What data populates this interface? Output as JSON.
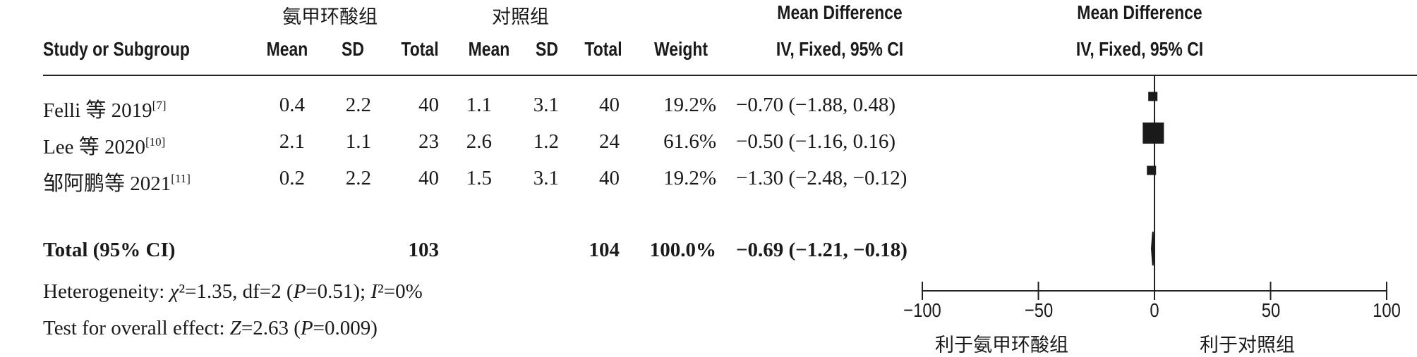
{
  "header": {
    "group_treatment": "氨甲环酸组",
    "group_control": "对照组",
    "md_title_left": "Mean Difference",
    "md_title_right": "Mean Difference",
    "study": "Study or Subgroup",
    "mean1": "Mean",
    "sd1": "SD",
    "total1": "Total",
    "mean2": "Mean",
    "sd2": "SD",
    "total2": "Total",
    "weight": "Weight",
    "ci_left": "IV, Fixed, 95% CI",
    "ci_right": "IV, Fixed, 95% CI"
  },
  "rows": [
    {
      "name": "Felli 等 2019",
      "ref": "[7]",
      "mean1": "0.4",
      "sd1": "2.2",
      "total1": "40",
      "mean2": "1.1",
      "sd2": "3.1",
      "total2": "40",
      "weight": "19.2%",
      "ci": "−0.70 (−1.88, 0.48)"
    },
    {
      "name": "Lee 等 2020",
      "ref": "[10]",
      "mean1": "2.1",
      "sd1": "1.1",
      "total1": "23",
      "mean2": "2.6",
      "sd2": "1.2",
      "total2": "24",
      "weight": "61.6%",
      "ci": "−0.50 (−1.16, 0.16)"
    },
    {
      "name": "邹阿鹏等 2021",
      "ref": "[11]",
      "mean1": "0.2",
      "sd1": "2.2",
      "total1": "40",
      "mean2": "1.5",
      "sd2": "3.1",
      "total2": "40",
      "weight": "19.2%",
      "ci": "−1.30 (−2.48, −0.12)"
    }
  ],
  "total": {
    "label": "Total (95% CI)",
    "total1": "103",
    "total2": "104",
    "weight": "100.0%",
    "ci": "−0.69 (−1.21, −0.18)"
  },
  "heterogeneity": {
    "prefix": "Heterogeneity: ",
    "chi": "χ",
    "chi_rest": "²=1.35, df=2 (",
    "p": "P",
    "p_rest": "=0.51); ",
    "i": "I",
    "i_rest": "²=0%"
  },
  "overall": {
    "prefix": "Test for overall effect: ",
    "z": "Z",
    "z_rest": "=2.63 (",
    "p": "P",
    "p_rest": "=0.009)"
  },
  "axis": {
    "favours_left": "利于氨甲环酸组",
    "favours_right": "利于对照组"
  },
  "chart_data": {
    "type": "forest",
    "xlim": [
      -100,
      100
    ],
    "ticks": [
      -100,
      -50,
      0,
      50,
      100
    ],
    "tick_labels": [
      "−100",
      "−50",
      "0",
      "50",
      "100"
    ],
    "studies": [
      {
        "name": "Felli 等 2019",
        "md": -0.7,
        "lo": -1.88,
        "hi": 0.48,
        "weight": 19.2
      },
      {
        "name": "Lee 等 2020",
        "md": -0.5,
        "lo": -1.16,
        "hi": 0.16,
        "weight": 61.6
      },
      {
        "name": "邹阿鹏等 2021",
        "md": -1.3,
        "lo": -2.48,
        "hi": -0.12,
        "weight": 19.2
      }
    ],
    "pooled": {
      "md": -0.69,
      "lo": -1.21,
      "hi": -0.18
    }
  }
}
